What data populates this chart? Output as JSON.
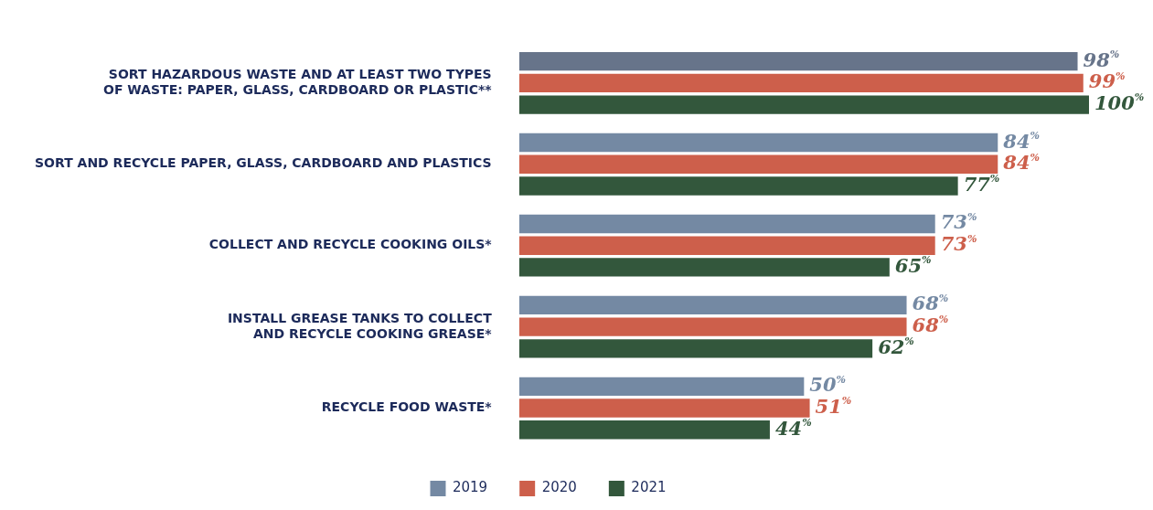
{
  "chart_data": {
    "type": "bar",
    "orientation": "horizontal",
    "categories": [
      "SORT HAZARDOUS WASTE AND AT LEAST TWO TYPES OF WASTE: PAPER, GLASS, CARDBOARD OR PLASTIC**",
      "SORT AND RECYCLE PAPER, GLASS, CARDBOARD AND PLASTICS",
      "COLLECT AND RECYCLE COOKING OILS*",
      "INSTALL GREASE TANKS TO COLLECT AND RECYCLE COOKING GREASE*",
      "RECYCLE FOOD WASTE*"
    ],
    "series": [
      {
        "name": "2019",
        "color": "#7489a3",
        "colors": [
          "#67748a",
          "#7489a3",
          "#7489a3",
          "#7489a3",
          "#7489a3"
        ],
        "values": [
          98,
          84,
          73,
          68,
          50
        ],
        "value_labels": [
          "98$^{%}$",
          "84$^{%}$",
          "73$^{%}$",
          "68$^{%}$",
          "50$^{%}$"
        ]
      },
      {
        "name": "2020",
        "color": "#cd5f4b",
        "values": [
          99,
          84,
          73,
          68,
          51
        ],
        "value_labels": [
          "99$^{%}$",
          "84$^{%}$",
          "73$^{%}$",
          "68$^{%}$",
          "51$^{%}$"
        ]
      },
      {
        "name": "2021",
        "color": "#33573c",
        "values": [
          100,
          77,
          65,
          62,
          44
        ],
        "value_labels": [
          "100$^{%}$",
          "77$^{%}$",
          "65$^{%}$",
          "62$^{%}$",
          "44$^{%}$"
        ]
      }
    ],
    "legend": "bottom"
  }
}
